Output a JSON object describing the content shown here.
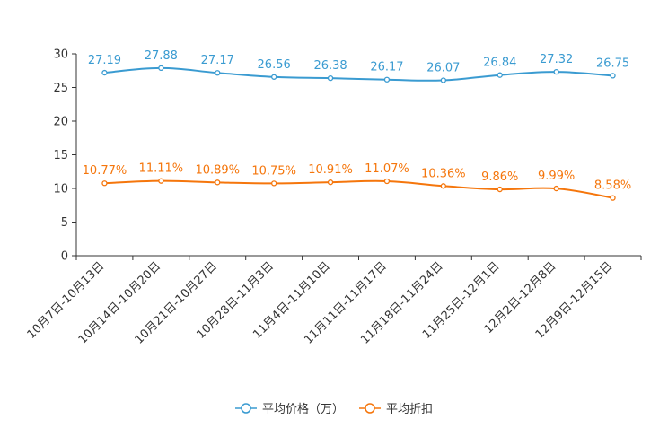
{
  "chart_data": {
    "type": "line",
    "title": "",
    "xlabel": "",
    "ylabel": "",
    "ylim": [
      0,
      30
    ],
    "yticks": [
      0,
      5,
      10,
      15,
      20,
      25,
      30
    ],
    "grid": false,
    "legend_position": "bottom",
    "categories": [
      "10月7日-10月13日",
      "10月14日-10月20日",
      "10月21日-10月27日",
      "10月28日-11月3日",
      "11月4日-11月10日",
      "11月11日-11月17日",
      "11月18日-11月24日",
      "11月25日-12月1日",
      "12月2日-12月8日",
      "12月9日-12月15日"
    ],
    "series": [
      {
        "name": "平均价格（万）",
        "color": "#3a9bd1",
        "values": [
          27.19,
          27.88,
          27.17,
          26.56,
          26.38,
          26.17,
          26.07,
          26.84,
          27.32,
          26.75
        ],
        "labels": [
          "27.19",
          "27.88",
          "27.17",
          "26.56",
          "26.38",
          "26.17",
          "26.07",
          "26.84",
          "27.32",
          "26.75"
        ]
      },
      {
        "name": "平均折扣",
        "color": "#f5760c",
        "values": [
          10.77,
          11.11,
          10.89,
          10.75,
          10.91,
          11.07,
          10.36,
          9.86,
          9.99,
          8.58
        ],
        "labels": [
          "10.77%",
          "11.11%",
          "10.89%",
          "10.75%",
          "10.91%",
          "11.07%",
          "10.36%",
          "9.86%",
          "9.99%",
          "8.58%"
        ]
      }
    ]
  }
}
